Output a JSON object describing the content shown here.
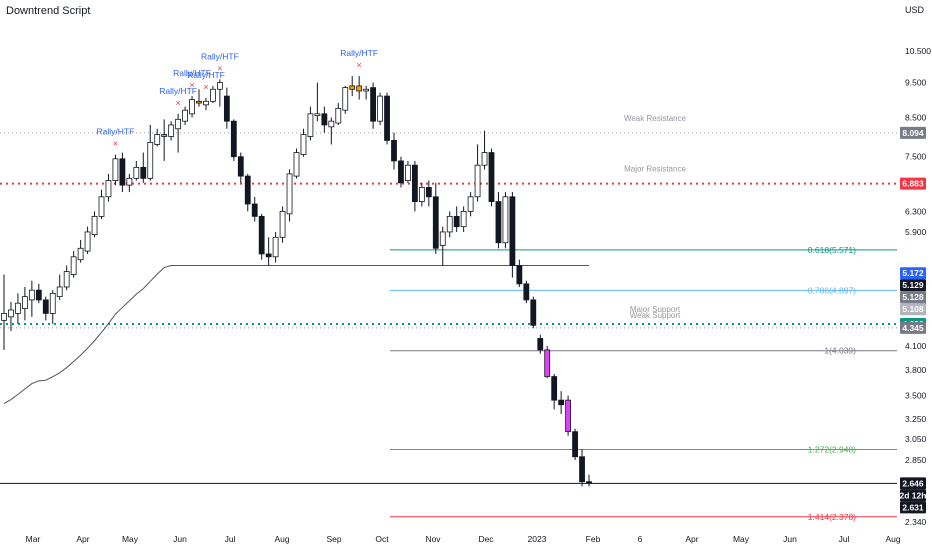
{
  "header": {
    "title": "Downtrend Script",
    "currency": "USD"
  },
  "chart_data": {
    "type": "candlestick",
    "symbol": "Downtrend Script",
    "x_labels": [
      "Mar",
      "Apr",
      "May",
      "Jun",
      "Jul",
      "Aug",
      "Sep",
      "Oct",
      "Nov",
      "Dec",
      "2023",
      "Feb",
      "6",
      "Apr",
      "May",
      "Jun",
      "Jul",
      "Aug"
    ],
    "y_ticks": [
      "10.500",
      "9.500",
      "8.500",
      "7.500",
      "6.300",
      "5.900",
      "4.700",
      "4.100",
      "3.800",
      "3.500",
      "3.250",
      "3.050",
      "2.850",
      "2.340"
    ],
    "ylim": [
      2.28,
      11.6
    ],
    "scale": "log",
    "level_lines": [
      {
        "name": "Weak Resistance",
        "value": 8.094,
        "tag": "8.094",
        "style": "dotted",
        "color": "#9598a1"
      },
      {
        "name": "Major Resistance",
        "value": 6.883,
        "tag": "6.883",
        "style": "dotted",
        "color": "#f23645"
      },
      {
        "name": "Major Support",
        "value": 4.398,
        "tag": "4.398",
        "style": "dotted",
        "color": "#089981"
      },
      {
        "name": "Weak Support",
        "value": 4.345,
        "tag": "4.345",
        "style": "dotted",
        "color": "#9598a1"
      }
    ],
    "fib_levels": [
      {
        "label": "0.618(5.571)",
        "value": 5.571,
        "color": "#089981"
      },
      {
        "label": "0.786(4.897)",
        "value": 4.897,
        "color": "#64b5f6"
      },
      {
        "label": "1(4.039)",
        "value": 4.039,
        "color": "#787b86"
      },
      {
        "label": "1.272(2.948)",
        "value": 2.948,
        "color": "#4caf50"
      },
      {
        "label": "1.414(2.378)",
        "value": 2.378,
        "color": "#f23645"
      }
    ],
    "price_tags": [
      {
        "text": "5.172",
        "value": 5.172,
        "bg": "#2962ff"
      },
      {
        "text": "5.129",
        "value": 5.129,
        "bg": "#131722"
      },
      {
        "text": "5.128",
        "value": 5.128,
        "bg": "#787b86"
      },
      {
        "text": "5.108",
        "value": 5.108,
        "bg": "#b2b5be"
      },
      {
        "text": "2.646",
        "value": 2.646,
        "bg": "#131722"
      },
      {
        "text": "2d 12h",
        "value": 2.646,
        "bg": "#131722"
      },
      {
        "text": "2.631",
        "value": 2.631,
        "bg": "#131722"
      }
    ],
    "current_price": 2.646,
    "annotations": [
      "Rally/HTF",
      "Rally/HTF",
      "Rally/HTF",
      "Rally/HTF",
      "Rally/HTF",
      "Rally/HTF"
    ],
    "candles": [
      {
        "o": 4.45,
        "h": 5.15,
        "l": 4.05,
        "c": 4.55
      },
      {
        "o": 4.5,
        "h": 4.72,
        "l": 4.3,
        "c": 4.6
      },
      {
        "o": 4.55,
        "h": 4.85,
        "l": 4.4,
        "c": 4.7
      },
      {
        "o": 4.62,
        "h": 4.95,
        "l": 4.45,
        "c": 4.8
      },
      {
        "o": 4.75,
        "h": 5.05,
        "l": 4.5,
        "c": 4.9
      },
      {
        "o": 4.9,
        "h": 5.0,
        "l": 4.7,
        "c": 4.75
      },
      {
        "o": 4.75,
        "h": 4.8,
        "l": 4.45,
        "c": 4.55
      },
      {
        "o": 4.55,
        "h": 4.9,
        "l": 4.4,
        "c": 4.85
      },
      {
        "o": 4.8,
        "h": 5.15,
        "l": 4.75,
        "c": 4.95
      },
      {
        "o": 4.95,
        "h": 5.3,
        "l": 4.9,
        "c": 5.2
      },
      {
        "o": 5.15,
        "h": 5.55,
        "l": 5.1,
        "c": 5.45
      },
      {
        "o": 5.4,
        "h": 5.75,
        "l": 5.35,
        "c": 5.6
      },
      {
        "o": 5.55,
        "h": 6.0,
        "l": 5.5,
        "c": 5.9
      },
      {
        "o": 5.85,
        "h": 6.3,
        "l": 5.8,
        "c": 6.2
      },
      {
        "o": 6.2,
        "h": 6.75,
        "l": 6.15,
        "c": 6.6
      },
      {
        "o": 6.6,
        "h": 7.1,
        "l": 6.5,
        "c": 6.95
      },
      {
        "o": 6.95,
        "h": 7.55,
        "l": 6.85,
        "c": 7.45
      },
      {
        "o": 7.45,
        "h": 7.6,
        "l": 6.7,
        "c": 6.85
      },
      {
        "o": 6.85,
        "h": 7.1,
        "l": 6.7,
        "c": 7.0
      },
      {
        "o": 7.0,
        "h": 7.4,
        "l": 6.95,
        "c": 7.25
      },
      {
        "o": 7.25,
        "h": 7.6,
        "l": 6.9,
        "c": 7.0
      },
      {
        "o": 7.0,
        "h": 8.3,
        "l": 6.95,
        "c": 7.85
      },
      {
        "o": 7.8,
        "h": 8.2,
        "l": 7.75,
        "c": 8.05
      },
      {
        "o": 8.05,
        "h": 8.45,
        "l": 7.4,
        "c": 8.0,
        "hl": "#f7a600"
      },
      {
        "o": 8.0,
        "h": 8.4,
        "l": 7.9,
        "c": 8.3
      },
      {
        "o": 8.2,
        "h": 8.6,
        "l": 7.6,
        "c": 8.45
      },
      {
        "o": 8.4,
        "h": 8.8,
        "l": 8.3,
        "c": 8.7
      },
      {
        "o": 8.6,
        "h": 9.1,
        "l": 8.5,
        "c": 9.0
      },
      {
        "o": 8.95,
        "h": 9.3,
        "l": 8.8,
        "c": 8.9,
        "hl": "#f7a600"
      },
      {
        "o": 8.85,
        "h": 9.05,
        "l": 8.7,
        "c": 8.95
      },
      {
        "o": 8.95,
        "h": 9.4,
        "l": 8.9,
        "c": 9.3
      },
      {
        "o": 9.3,
        "h": 9.6,
        "l": 8.8,
        "c": 9.5
      },
      {
        "o": 9.1,
        "h": 9.35,
        "l": 8.2,
        "c": 8.4
      },
      {
        "o": 8.4,
        "h": 8.45,
        "l": 7.4,
        "c": 7.5
      },
      {
        "o": 7.5,
        "h": 7.6,
        "l": 6.9,
        "c": 7.05
      },
      {
        "o": 7.05,
        "h": 7.1,
        "l": 6.3,
        "c": 6.45
      },
      {
        "o": 6.45,
        "h": 6.6,
        "l": 6.1,
        "c": 6.2
      },
      {
        "o": 6.2,
        "h": 6.25,
        "l": 5.4,
        "c": 5.5
      },
      {
        "o": 5.5,
        "h": 5.8,
        "l": 5.3,
        "c": 5.45
      },
      {
        "o": 5.45,
        "h": 5.9,
        "l": 5.35,
        "c": 5.8
      },
      {
        "o": 5.8,
        "h": 6.4,
        "l": 5.7,
        "c": 6.3
      },
      {
        "o": 6.25,
        "h": 7.2,
        "l": 6.1,
        "c": 7.1
      },
      {
        "o": 7.05,
        "h": 7.7,
        "l": 7.0,
        "c": 7.6
      },
      {
        "o": 7.55,
        "h": 8.2,
        "l": 7.5,
        "c": 8.05
      },
      {
        "o": 8.0,
        "h": 8.8,
        "l": 7.9,
        "c": 8.6
      },
      {
        "o": 8.55,
        "h": 9.5,
        "l": 8.4,
        "c": 8.6
      },
      {
        "o": 8.6,
        "h": 8.8,
        "l": 8.1,
        "c": 8.3
      },
      {
        "o": 8.25,
        "h": 8.5,
        "l": 7.8,
        "c": 8.4
      },
      {
        "o": 8.35,
        "h": 8.9,
        "l": 8.3,
        "c": 8.75
      },
      {
        "o": 8.7,
        "h": 9.4,
        "l": 8.6,
        "c": 9.35
      },
      {
        "o": 9.3,
        "h": 9.7,
        "l": 9.1,
        "c": 9.4,
        "hl": "#f7a600"
      },
      {
        "o": 9.4,
        "h": 9.7,
        "l": 9.0,
        "c": 9.25,
        "hl": "#f7a600"
      },
      {
        "o": 9.25,
        "h": 9.4,
        "l": 9.0,
        "c": 9.3
      },
      {
        "o": 9.35,
        "h": 9.5,
        "l": 8.2,
        "c": 8.4
      },
      {
        "o": 8.4,
        "h": 9.2,
        "l": 8.3,
        "c": 9.1
      },
      {
        "o": 9.1,
        "h": 9.2,
        "l": 7.8,
        "c": 7.9
      },
      {
        "o": 7.9,
        "h": 8.1,
        "l": 7.2,
        "c": 7.4
      },
      {
        "o": 7.4,
        "h": 7.5,
        "l": 6.8,
        "c": 6.9
      },
      {
        "o": 6.95,
        "h": 7.4,
        "l": 6.9,
        "c": 7.3
      },
      {
        "o": 7.3,
        "h": 7.4,
        "l": 6.3,
        "c": 6.5
      },
      {
        "o": 6.5,
        "h": 6.9,
        "l": 6.4,
        "c": 6.8
      },
      {
        "o": 6.8,
        "h": 6.95,
        "l": 6.4,
        "c": 6.6
      },
      {
        "o": 6.6,
        "h": 6.9,
        "l": 5.5,
        "c": 5.6
      },
      {
        "o": 5.65,
        "h": 6.0,
        "l": 5.3,
        "c": 5.9
      },
      {
        "o": 5.9,
        "h": 6.3,
        "l": 5.8,
        "c": 6.2
      },
      {
        "o": 6.2,
        "h": 6.4,
        "l": 5.9,
        "c": 6.0
      },
      {
        "o": 6.0,
        "h": 6.4,
        "l": 5.9,
        "c": 6.3
      },
      {
        "o": 6.3,
        "h": 6.7,
        "l": 6.2,
        "c": 6.6
      },
      {
        "o": 6.6,
        "h": 7.8,
        "l": 6.5,
        "c": 7.3
      },
      {
        "o": 7.3,
        "h": 8.15,
        "l": 7.2,
        "c": 7.6
      },
      {
        "o": 7.6,
        "h": 7.7,
        "l": 6.4,
        "c": 6.5
      },
      {
        "o": 6.5,
        "h": 6.7,
        "l": 5.6,
        "c": 5.7
      },
      {
        "o": 5.7,
        "h": 6.7,
        "l": 5.6,
        "c": 6.6
      },
      {
        "o": 6.6,
        "h": 6.7,
        "l": 5.1,
        "c": 5.3
      },
      {
        "o": 5.3,
        "h": 5.4,
        "l": 4.95,
        "c": 5.0
      },
      {
        "o": 5.0,
        "h": 5.05,
        "l": 4.7,
        "c": 4.75
      },
      {
        "o": 4.75,
        "h": 4.8,
        "l": 4.34,
        "c": 4.38
      },
      {
        "o": 4.2,
        "h": 4.25,
        "l": 4.0,
        "c": 4.05
      },
      {
        "o": 4.05,
        "h": 4.1,
        "l": 3.7,
        "c": 3.72,
        "hl": "#e040fb"
      },
      {
        "o": 3.72,
        "h": 3.75,
        "l": 3.35,
        "c": 3.45
      },
      {
        "o": 3.45,
        "h": 3.55,
        "l": 3.3,
        "c": 3.4
      },
      {
        "o": 3.45,
        "h": 3.5,
        "l": 3.08,
        "c": 3.12,
        "hl": "#e040fb"
      },
      {
        "o": 3.12,
        "h": 3.15,
        "l": 2.85,
        "c": 2.88
      },
      {
        "o": 2.88,
        "h": 2.95,
        "l": 2.62,
        "c": 2.66
      },
      {
        "o": 2.66,
        "h": 2.72,
        "l": 2.62,
        "c": 2.646
      }
    ]
  }
}
